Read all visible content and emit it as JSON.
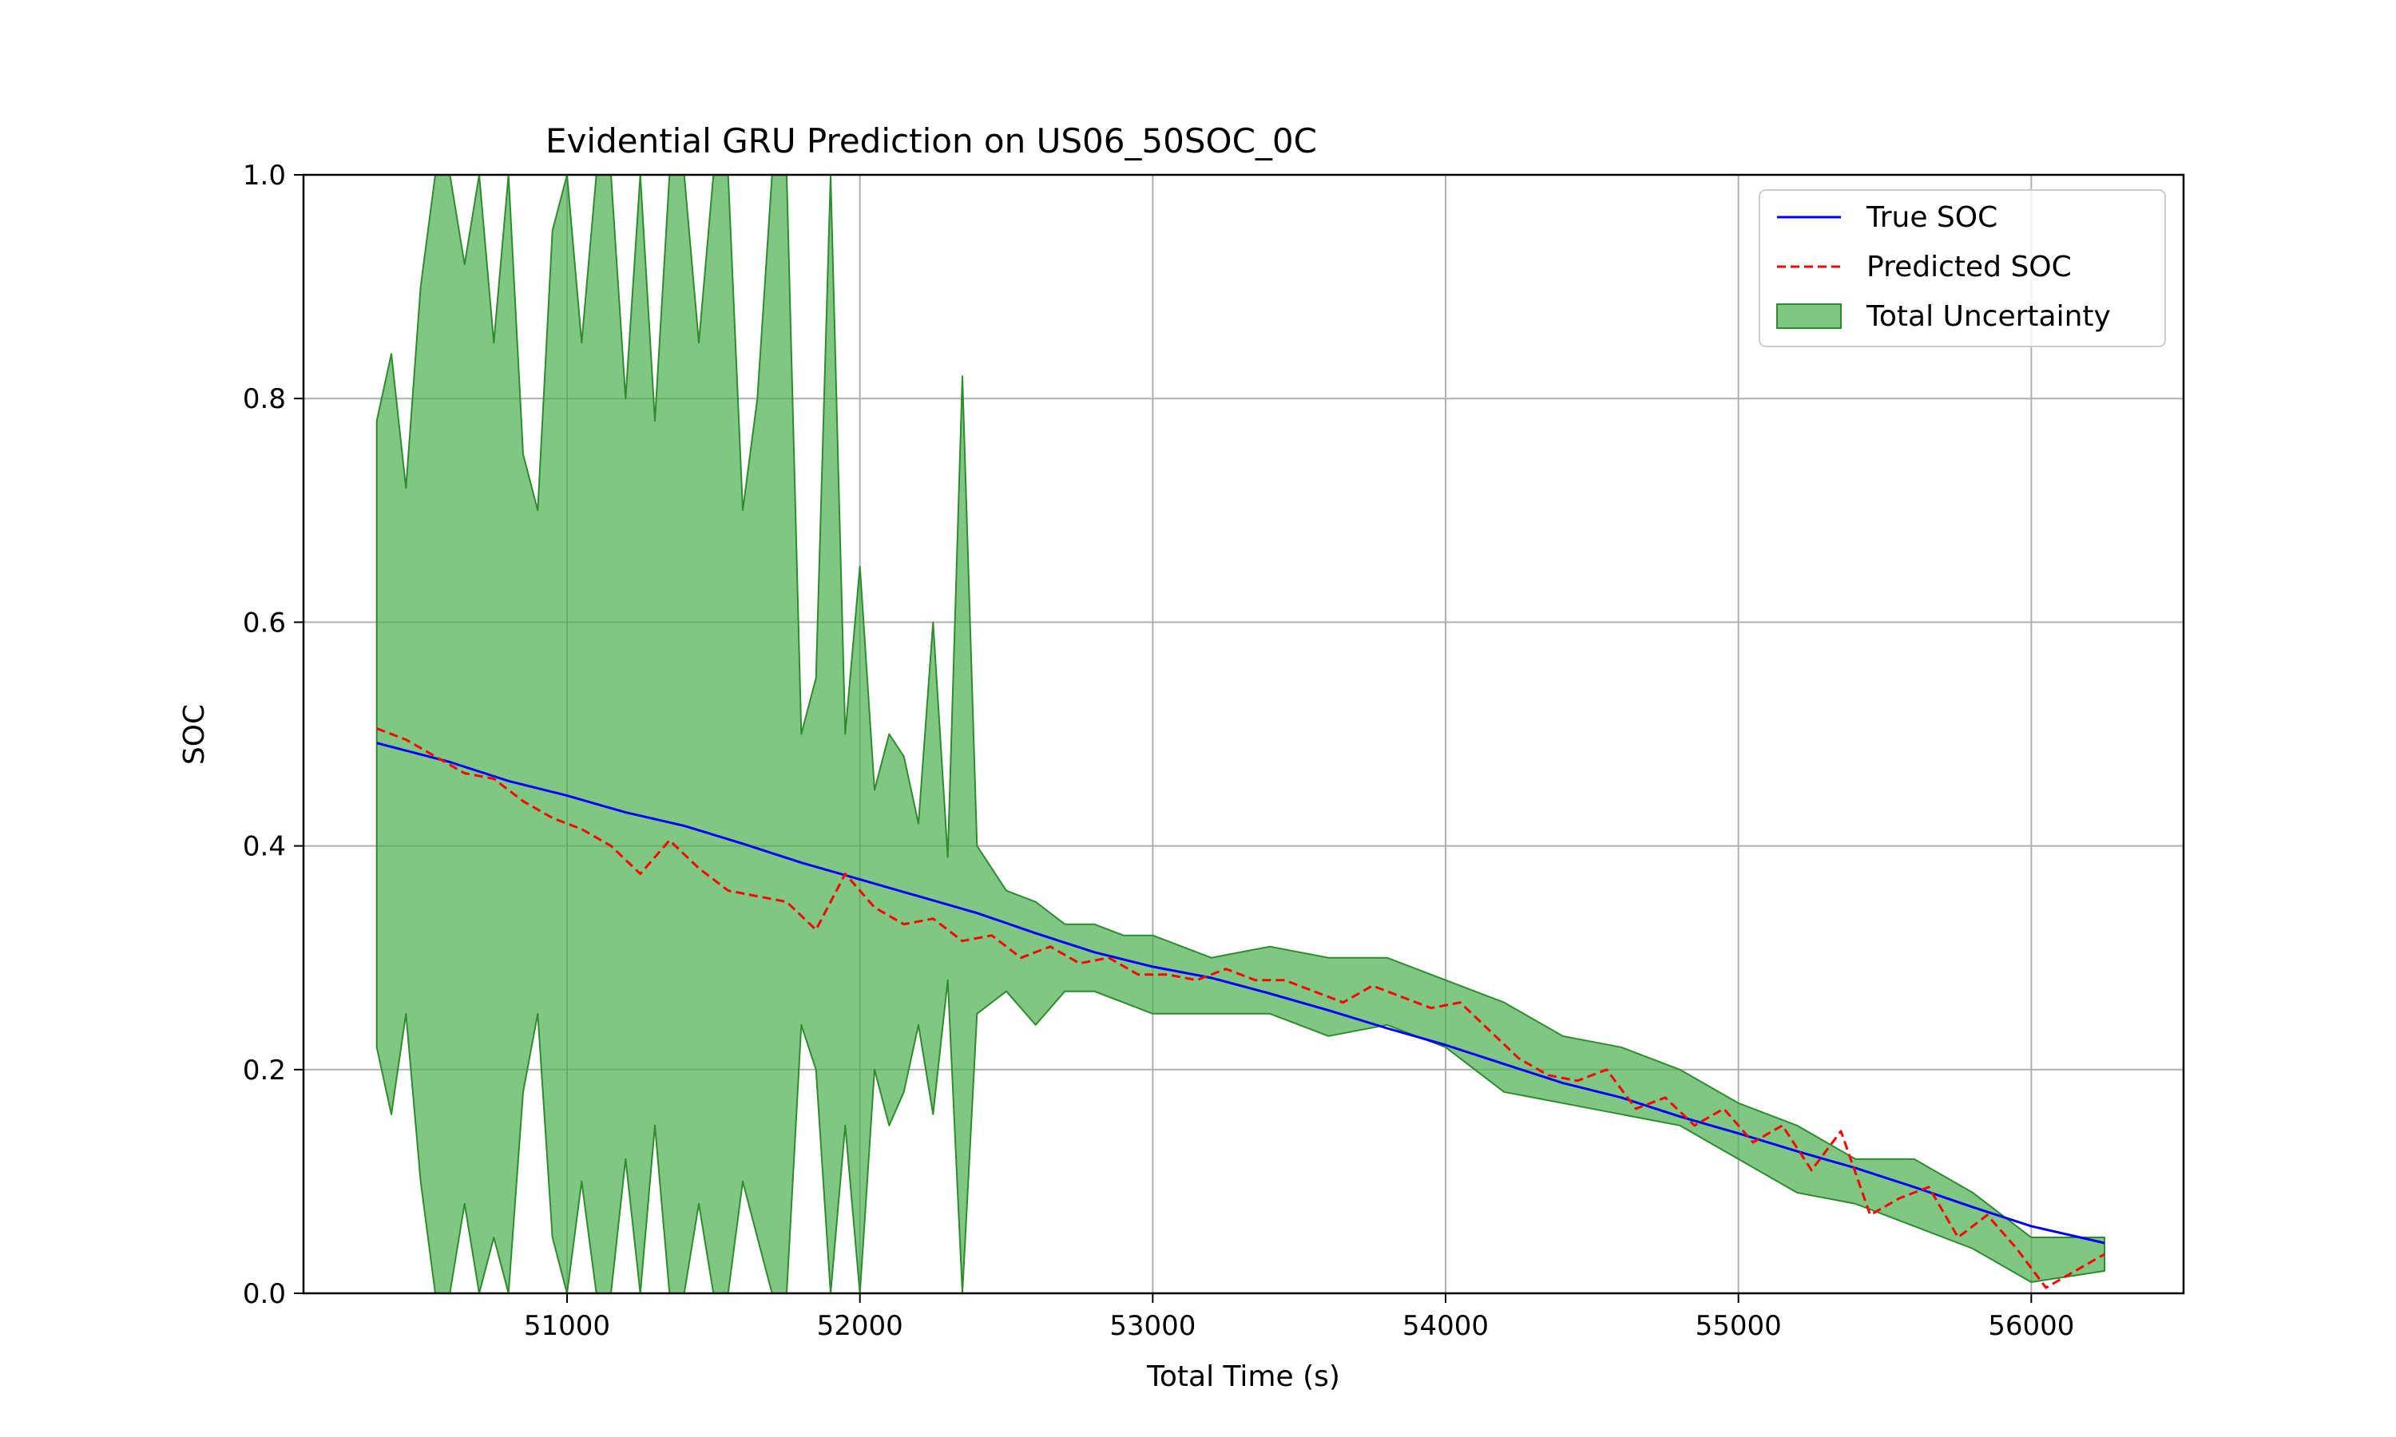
{
  "chart_data": {
    "type": "line",
    "title": "Evidential GRU Prediction on US06_50SOC_0C",
    "xlabel": "Total Time (s)",
    "ylabel": "SOC",
    "xlim": [
      50100,
      56520
    ],
    "ylim": [
      0.0,
      1.0
    ],
    "x_ticks": [
      51000,
      52000,
      53000,
      54000,
      55000,
      56000
    ],
    "y_ticks": [
      0.0,
      0.2,
      0.4,
      0.6,
      0.8,
      1.0
    ],
    "x_tick_labels": [
      "51000",
      "52000",
      "53000",
      "54000",
      "55000",
      "56000"
    ],
    "y_tick_labels": [
      "0.0",
      "0.2",
      "0.4",
      "0.6",
      "0.8",
      "1.0"
    ],
    "grid": true,
    "legend_position": "top-right",
    "legend": [
      "True SOC",
      "Predicted SOC",
      "Total Uncertainty"
    ],
    "series": [
      {
        "name": "True SOC",
        "style": "solid",
        "color": "#0000ff",
        "x": [
          50350,
          50600,
          50800,
          51000,
          51200,
          51400,
          51600,
          51800,
          52000,
          52200,
          52400,
          52600,
          52800,
          53000,
          53200,
          53400,
          53600,
          53800,
          54000,
          54200,
          54400,
          54600,
          54800,
          55000,
          55200,
          55400,
          55600,
          55800,
          56000,
          56250
        ],
        "y": [
          0.492,
          0.475,
          0.458,
          0.445,
          0.43,
          0.418,
          0.402,
          0.385,
          0.37,
          0.355,
          0.34,
          0.322,
          0.305,
          0.292,
          0.282,
          0.268,
          0.253,
          0.237,
          0.222,
          0.205,
          0.188,
          0.175,
          0.158,
          0.143,
          0.127,
          0.112,
          0.095,
          0.077,
          0.06,
          0.045
        ]
      },
      {
        "name": "Predicted SOC",
        "style": "dashed",
        "color": "#ff0000",
        "x": [
          50350,
          50450,
          50550,
          50650,
          50750,
          50850,
          50950,
          51050,
          51150,
          51250,
          51350,
          51450,
          51550,
          51650,
          51750,
          51850,
          51950,
          52050,
          52150,
          52250,
          52350,
          52450,
          52550,
          52650,
          52750,
          52850,
          52950,
          53050,
          53150,
          53250,
          53350,
          53450,
          53550,
          53650,
          53750,
          53850,
          53950,
          54050,
          54150,
          54250,
          54350,
          54450,
          54550,
          54650,
          54750,
          54850,
          54950,
          55050,
          55150,
          55250,
          55350,
          55450,
          55550,
          55650,
          55750,
          55850,
          55950,
          56050,
          56150,
          56250
        ],
        "y": [
          0.505,
          0.495,
          0.48,
          0.465,
          0.46,
          0.44,
          0.425,
          0.415,
          0.4,
          0.375,
          0.405,
          0.38,
          0.36,
          0.355,
          0.35,
          0.325,
          0.375,
          0.345,
          0.33,
          0.335,
          0.315,
          0.32,
          0.3,
          0.31,
          0.295,
          0.3,
          0.285,
          0.285,
          0.28,
          0.29,
          0.28,
          0.28,
          0.27,
          0.26,
          0.275,
          0.265,
          0.255,
          0.26,
          0.235,
          0.21,
          0.195,
          0.19,
          0.2,
          0.165,
          0.175,
          0.15,
          0.165,
          0.135,
          0.15,
          0.11,
          0.145,
          0.07,
          0.085,
          0.095,
          0.05,
          0.07,
          0.04,
          0.005,
          0.02,
          0.035
        ]
      }
    ],
    "uncertainty_band": {
      "name": "Total Uncertainty",
      "color": "#4caf50",
      "x": [
        50350,
        50400,
        50450,
        50500,
        50550,
        50600,
        50650,
        50700,
        50750,
        50800,
        50850,
        50900,
        50950,
        51000,
        51050,
        51100,
        51150,
        51200,
        51250,
        51300,
        51350,
        51400,
        51450,
        51500,
        51550,
        51600,
        51650,
        51700,
        51750,
        51800,
        51850,
        51900,
        51950,
        52000,
        52050,
        52100,
        52150,
        52200,
        52250,
        52300,
        52350,
        52400,
        52500,
        52600,
        52700,
        52800,
        52900,
        53000,
        53200,
        53400,
        53600,
        53800,
        54000,
        54200,
        54400,
        54600,
        54800,
        55000,
        55200,
        55400,
        55600,
        55800,
        56000,
        56250
      ],
      "lower": [
        0.22,
        0.16,
        0.25,
        0.1,
        0.0,
        0.0,
        0.08,
        0.0,
        0.05,
        0.0,
        0.18,
        0.25,
        0.05,
        0.0,
        0.1,
        0.0,
        0.0,
        0.12,
        0.0,
        0.15,
        0.0,
        0.0,
        0.08,
        0.0,
        0.0,
        0.1,
        0.05,
        0.0,
        0.0,
        0.24,
        0.2,
        0.0,
        0.15,
        0.0,
        0.2,
        0.15,
        0.18,
        0.24,
        0.16,
        0.28,
        0.0,
        0.25,
        0.27,
        0.24,
        0.27,
        0.27,
        0.26,
        0.25,
        0.25,
        0.25,
        0.23,
        0.24,
        0.22,
        0.18,
        0.17,
        0.16,
        0.15,
        0.12,
        0.09,
        0.08,
        0.06,
        0.04,
        0.01,
        0.02
      ],
      "upper": [
        0.78,
        0.84,
        0.72,
        0.9,
        1.0,
        1.0,
        0.92,
        1.0,
        0.85,
        1.0,
        0.75,
        0.7,
        0.95,
        1.0,
        0.85,
        1.0,
        1.0,
        0.8,
        1.0,
        0.78,
        1.0,
        1.0,
        0.85,
        1.0,
        1.0,
        0.7,
        0.8,
        1.0,
        1.0,
        0.5,
        0.55,
        1.0,
        0.5,
        0.65,
        0.45,
        0.5,
        0.48,
        0.42,
        0.6,
        0.39,
        0.82,
        0.4,
        0.36,
        0.35,
        0.33,
        0.33,
        0.32,
        0.32,
        0.3,
        0.31,
        0.3,
        0.3,
        0.28,
        0.26,
        0.23,
        0.22,
        0.2,
        0.17,
        0.15,
        0.12,
        0.12,
        0.09,
        0.05,
        0.05
      ]
    }
  }
}
